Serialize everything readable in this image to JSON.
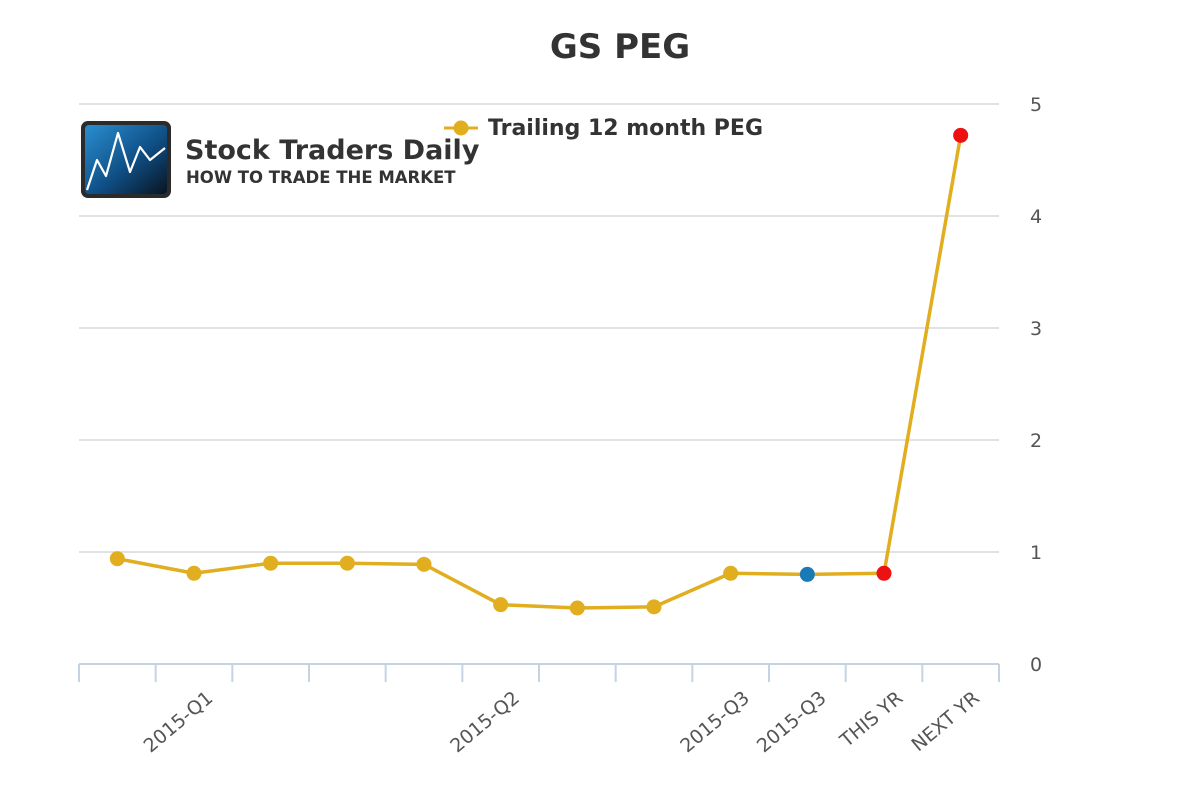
{
  "chart_data": {
    "type": "line",
    "title": "GS PEG",
    "categories": [
      "",
      "2015-Q1",
      "",
      "",
      "",
      "2015-Q2",
      "",
      "",
      "2015-Q3",
      "2015-Q3",
      "THIS YR",
      "NEXT YR"
    ],
    "series": [
      {
        "name": "Trailing 12 month PEG",
        "color": "#e0ae1e",
        "values": [
          0.94,
          0.81,
          0.9,
          0.9,
          0.89,
          0.53,
          0.5,
          0.51,
          0.81,
          0.8,
          0.81,
          4.72
        ],
        "point_colors": [
          "#e0ae1e",
          "#e0ae1e",
          "#e0ae1e",
          "#e0ae1e",
          "#e0ae1e",
          "#e0ae1e",
          "#e0ae1e",
          "#e0ae1e",
          "#e0ae1e",
          "#1a7ab5",
          "#ee1111",
          "#ee1111"
        ]
      }
    ],
    "y_ticks": [
      0,
      1,
      2,
      3,
      4,
      5
    ],
    "ylim": [
      0,
      5
    ],
    "y_axis_side": "right",
    "grid": true,
    "legend_position": "top-center"
  },
  "logo": {
    "title": "Stock Traders Daily",
    "subtitle": "HOW TO TRADE THE MARKET"
  }
}
